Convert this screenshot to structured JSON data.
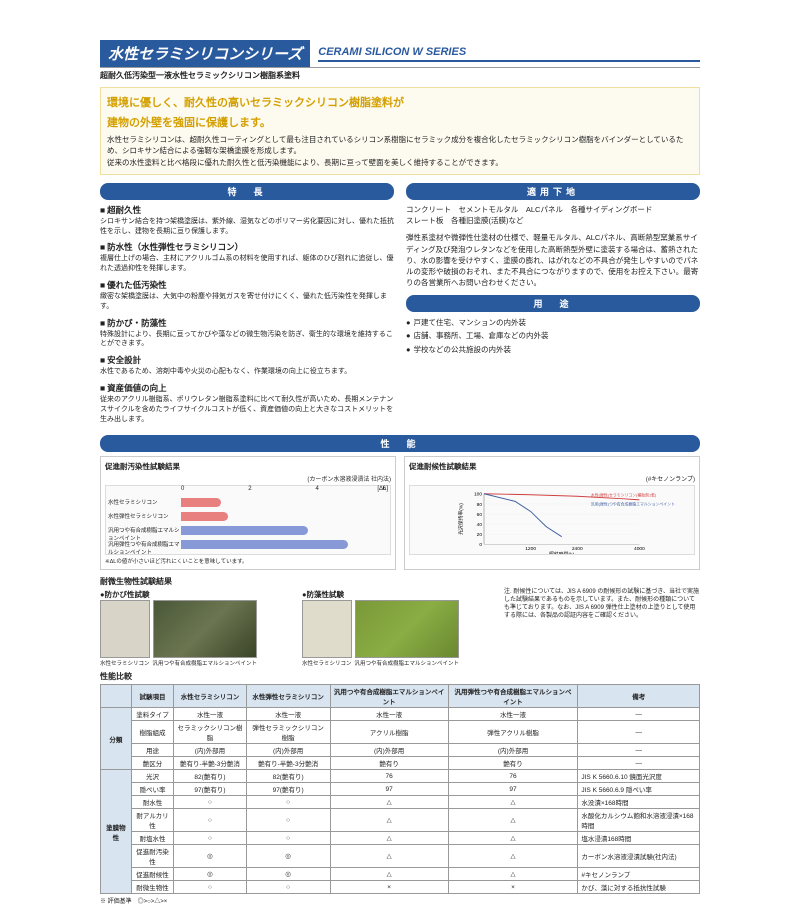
{
  "header": {
    "jp": "水性セラミシリコンシリーズ",
    "en": "CERAMI SILICON W SERIES",
    "subtitle": "超耐久低汚染型一液水性セラミックシリコン樹脂系塗料"
  },
  "intro": {
    "highlight1": "環境に優しく、耐久性の高いセラミックシリコン樹脂塗料が",
    "highlight2": "建物の外壁を強固に保護します。",
    "body1": "水性セラミシリコンは、超耐久性コーティングとして最も注目されているシリコン系樹脂にセラミック成分を複合化したセラミックシリコン樹脂をバインダーとしているため、シロキサン結合による強靭な架橋塗膜を形成します。",
    "body2": "従来の水性塗料と比べ格段に優れた耐久性と低汚染機能により、長期に亘って壁面を美しく維持することができます。"
  },
  "features": {
    "title": "特　長",
    "items": [
      {
        "t": "超耐久性",
        "b": "シロキサン結合を持つ架橋塗膜は、紫外線、湿気などのポリマー劣化要因に対し、優れた抵抗性を示し、建物を長期に亘り保護します。"
      },
      {
        "t": "防水性（水性弾性セラミシリコン）",
        "b": "複層仕上げの場合、主材にアクリルゴム系の材料を使用すれば、躯体のひび割れに追従し、優れた透過抑性を発揮します。"
      },
      {
        "t": "優れた低汚染性",
        "b": "緻密な架橋塗膜は、大気中の粉塵や排気ガスを寄せ付けにくく、優れた低汚染性を発揮します。"
      },
      {
        "t": "防かび・防藻性",
        "b": "特殊設計により、長期に亘ってかびや藻などの微生物汚染を防ぎ、衛生的な環境を維持することができます。"
      },
      {
        "t": "安全設計",
        "b": "水性であるため、溶剤中毒や火災の心配もなく、作業環境の向上に役立ちます。"
      },
      {
        "t": "資産価値の向上",
        "b": "従来のアクリル樹脂系、ポリウレタン樹脂系塗料に比べて耐久性が高いため、長期メンテナンスサイクルを含めたライフサイクルコストが低く、資産価値の向上と大きなコストメリットを生み出します。"
      }
    ]
  },
  "app": {
    "title": "適用下地",
    "line1": "コンクリート　セメントモルタル　ALCパネル　各種サイディングボード",
    "line2": "スレート板　各種旧塗膜(活膜)など",
    "body": "弾性系塗材や微弾性仕塗材の仕様で、軽量モルタル、ALCパネル、高断熱型窯業系サイディング及び発泡ウレタンなどを使用した高断熱型外壁に塗装する場合は、蓄熱されたり、水の影響を受けやすく、塗膜の膨れ、はがれなどの不具合が発生しやすいのでパネルの変形や破損のおそれ、また不具合につながりますので、使用をお控え下さい。最寄りの各営業所へお問い合わせください。"
  },
  "uses": {
    "title": "用　途",
    "items": [
      "戸建て住宅、マンションの内外装",
      "店舗、事務所、工場、倉庫などの内外装",
      "学校などの公共施設の内外装"
    ]
  },
  "perf": {
    "title": "性　能"
  },
  "chart1": {
    "title": "促進耐汚染性試験結果",
    "sub": "(カーボン水溶液浸漬法 社内法)",
    "xmax": 6,
    "xticks": [
      0,
      2,
      4,
      6
    ],
    "xlabel_note": "※ΔLの値が小さいほど汚れにくいことを意味しています。",
    "bars": [
      {
        "label": "水性セラミシリコン",
        "value": 1.2,
        "color": "#e88080"
      },
      {
        "label": "水性弾性セラミシリコン",
        "value": 1.4,
        "color": "#e88080"
      },
      {
        "label": "汎用つや有合成樹脂エマルションペイント",
        "value": 3.8,
        "color": "#8899d8"
      },
      {
        "label": "汎用弾性つや有合成樹脂エマルションペイント",
        "value": 5.0,
        "color": "#8899d8"
      }
    ]
  },
  "chart2": {
    "title": "促進耐候性試験結果",
    "sub": "(#キセノンランプ)",
    "xmax": 4000,
    "xticks": [
      1200,
      2400,
      4000
    ],
    "xlabel": "照射時間(h)",
    "ylabel": "光沢保持率(%)",
    "ymax": 100,
    "yticks": [
      0,
      20,
      40,
      60,
      80,
      100
    ],
    "series": [
      {
        "label": "水性(弾性)セラミシリコン(補助剤1乾)",
        "color": "#d04040",
        "points": [
          [
            0,
            100
          ],
          [
            1200,
            98
          ],
          [
            2400,
            95
          ],
          [
            3600,
            90
          ],
          [
            4000,
            88
          ]
        ]
      },
      {
        "label": "汎用(弾性)つや有合成樹脂エマルションペイント",
        "color": "#4060a0",
        "points": [
          [
            0,
            100
          ],
          [
            800,
            85
          ],
          [
            1200,
            65
          ],
          [
            1600,
            35
          ],
          [
            2000,
            15
          ]
        ]
      }
    ]
  },
  "micro": {
    "title": "耐微生物性試験結果",
    "test1": "●防かび性試験",
    "test2": "●防藻性試験",
    "cap1": "水性セラミシリコン",
    "cap2": "汎用つや有合成樹脂エマルションペイント",
    "cap3": "水性セラミシリコン",
    "cap4": "汎用つや有合成樹脂エマルションペイント",
    "note": "注. 耐候性については、JIS A 6909 の耐候形の試験に基づき、当社で実施した試験結果であるものを示しています。また、耐候形の種類についても準じております。なお、JIS A 6909 弾性仕上塗材の上塗りとして使用する際には、各製品の認証内容をご確認ください。"
  },
  "micro_colors": {
    "clean1": "#d8d4c8",
    "moldy": "linear-gradient(135deg,#4a5838,#6b7550,#3a4428)",
    "clean2": "#e0dccc",
    "algae": "linear-gradient(135deg,#7a9838,#8aad44,#6a8830)"
  },
  "cmp": {
    "title": "性能比較",
    "note": "※ 評価基準　◎>○>△>×",
    "headers": [
      "試験項目",
      "水性セラミシリコン",
      "水性弾性セラミシリコン",
      "汎用つや有合成樹脂エマルションペイント",
      "汎用弾性つや有合成樹脂エマルションペイント",
      "備考"
    ],
    "cat1": "分類",
    "cat2": "塗膜物性",
    "rows1": [
      [
        "塗料タイプ",
        "水性一液",
        "水性一液",
        "水性一液",
        "水性一液",
        "—"
      ],
      [
        "樹脂組成",
        "セラミックシリコン樹脂",
        "弾性セラミックシリコン樹脂",
        "アクリル樹脂",
        "弾性アクリル樹脂",
        "—"
      ],
      [
        "用途",
        "(内)外部用",
        "(内)外部用",
        "(内)外部用",
        "(内)外部用",
        "—"
      ],
      [
        "艶区分",
        "艶有り-半艶-3分艶消",
        "艶有り-半艶-3分艶消",
        "艶有り",
        "艶有り",
        "—"
      ]
    ],
    "rows2": [
      [
        "光沢",
        "82(艶有り)",
        "82(艶有り)",
        "76",
        "76",
        "JIS K 5660.6.10 鏡面光沢度"
      ],
      [
        "隠ぺい率",
        "97(艶有り)",
        "97(艶有り)",
        "97",
        "97",
        "JIS K 5660.6.9 隠ぺい率"
      ],
      [
        "耐水性",
        "○",
        "○",
        "△",
        "△",
        "水没漬×168時間"
      ],
      [
        "耐アルカリ性",
        "○",
        "○",
        "△",
        "△",
        "水酸化カルシウム飽和水溶液浸漬×168時間"
      ],
      [
        "耐塩水性",
        "○",
        "○",
        "△",
        "△",
        "塩水浸漬168時間"
      ],
      [
        "促進耐汚染性",
        "◎",
        "◎",
        "△",
        "△",
        "カーボン水溶液浸漬試験(社内法)"
      ],
      [
        "促進耐候性",
        "◎",
        "◎",
        "△",
        "△",
        "#キセノンランプ"
      ],
      [
        "耐微生物性",
        "○",
        "○",
        "×",
        "×",
        "かび、藻に対する抵抗性試験"
      ]
    ]
  }
}
